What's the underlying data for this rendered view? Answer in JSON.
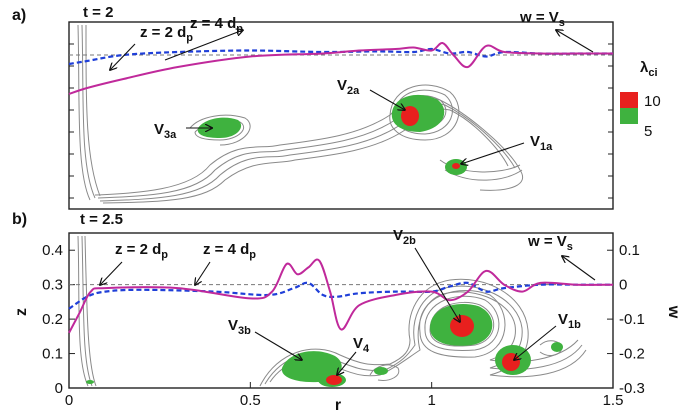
{
  "figure": {
    "panel_a": {
      "letter": "a)",
      "time": "t = 2"
    },
    "panel_b": {
      "letter": "b)",
      "time": "t = 2.5"
    },
    "annotations": {
      "z2": "z = 2 d",
      "z2_sub": "p",
      "z4": "z = 4 d",
      "z4_sub": "p",
      "ws": "w = V",
      "ws_sub": "s"
    },
    "legend": {
      "title": "λ",
      "title_sub": "ci",
      "entries": [
        {
          "label": "10",
          "color": "#e8201e"
        },
        {
          "label": "5",
          "color": "#3fb23f"
        }
      ]
    },
    "vortex_labels_a": [
      {
        "main": "V",
        "sub": "3a"
      },
      {
        "main": "V",
        "sub": "2a"
      },
      {
        "main": "V",
        "sub": "1a"
      }
    ],
    "vortex_labels_b": [
      {
        "main": "V",
        "sub": "3b"
      },
      {
        "main": "V",
        "sub": "4"
      },
      {
        "main": "V",
        "sub": "2b"
      },
      {
        "main": "V",
        "sub": "1b"
      }
    ]
  },
  "chart_data": [
    {
      "type": "line",
      "panel": "a",
      "series": [
        {
          "name": "z = 2 d_p",
          "style": "dashed",
          "color": "#1f3fd8",
          "x": [
            0.0,
            0.05,
            0.15,
            0.3,
            0.5,
            0.7,
            0.85,
            0.95,
            1.0,
            1.05,
            1.1,
            1.15,
            1.2,
            1.3,
            1.4,
            1.5
          ],
          "y": [
            -0.03,
            -0.02,
            0.0,
            0.01,
            0.015,
            0.01,
            0.012,
            0.01,
            0.02,
            0.005,
            0.01,
            -0.005,
            0.01,
            0.005,
            0.005,
            0.005
          ]
        },
        {
          "name": "z = 4 d_p",
          "style": "solid",
          "color": "#c0299b",
          "x": [
            0.0,
            0.05,
            0.15,
            0.3,
            0.5,
            0.7,
            0.8,
            0.9,
            0.95,
            1.0,
            1.03,
            1.06,
            1.1,
            1.15,
            1.2,
            1.3,
            1.4,
            1.5
          ],
          "y": [
            -0.13,
            -0.11,
            -0.08,
            -0.04,
            -0.005,
            0.005,
            0.015,
            0.02,
            0.025,
            0.015,
            0.04,
            0.0,
            -0.04,
            0.03,
            0.01,
            0.005,
            0.005,
            0.005
          ]
        }
      ],
      "reference_line": {
        "label": "w = V_s",
        "y": 0.0
      }
    },
    {
      "type": "line",
      "panel": "b",
      "xlabel": "r",
      "ylabel": "z",
      "y2label": "w",
      "xlim": [
        0,
        1.5
      ],
      "ylim": [
        0,
        0.45
      ],
      "y2lim": [
        -0.3,
        0.15
      ],
      "xticks": [
        "0",
        "0.5",
        "1",
        "1.5"
      ],
      "yticks": [
        "0",
        "0.1",
        "0.2",
        "0.3",
        "0.4"
      ],
      "y2ticks": [
        "-0.3",
        "-0.2",
        "-0.1",
        "0",
        "0.1"
      ],
      "series": [
        {
          "name": "z = 2 d_p",
          "style": "dashed",
          "color": "#1f3fd8",
          "x": [
            0.0,
            0.05,
            0.1,
            0.2,
            0.4,
            0.55,
            0.62,
            0.66,
            0.7,
            0.74,
            0.8,
            0.9,
            1.0,
            1.05,
            1.1,
            1.15,
            1.2,
            1.3,
            1.4,
            1.5
          ],
          "y": [
            -0.07,
            -0.035,
            -0.02,
            -0.015,
            -0.02,
            -0.03,
            -0.01,
            0.005,
            -0.03,
            -0.035,
            -0.025,
            -0.02,
            -0.02,
            -0.005,
            0.005,
            -0.02,
            -0.01,
            0.0,
            0.0,
            0.0
          ]
        },
        {
          "name": "z = 4 d_p",
          "style": "solid",
          "color": "#c0299b",
          "x": [
            0.0,
            0.03,
            0.06,
            0.1,
            0.3,
            0.5,
            0.56,
            0.6,
            0.63,
            0.66,
            0.69,
            0.72,
            0.75,
            0.8,
            0.9,
            1.0,
            1.05,
            1.1,
            1.15,
            1.2,
            1.25,
            1.3,
            1.4,
            1.5
          ],
          "y": [
            -0.14,
            -0.08,
            -0.02,
            -0.01,
            -0.01,
            -0.04,
            -0.02,
            0.06,
            0.03,
            0.05,
            0.07,
            -0.02,
            -0.13,
            -0.06,
            -0.03,
            -0.02,
            -0.045,
            -0.02,
            0.04,
            0.0,
            -0.02,
            0.005,
            0.0,
            0.0
          ]
        }
      ],
      "reference_line": {
        "label": "w = V_s",
        "y2": 0.0
      }
    }
  ]
}
